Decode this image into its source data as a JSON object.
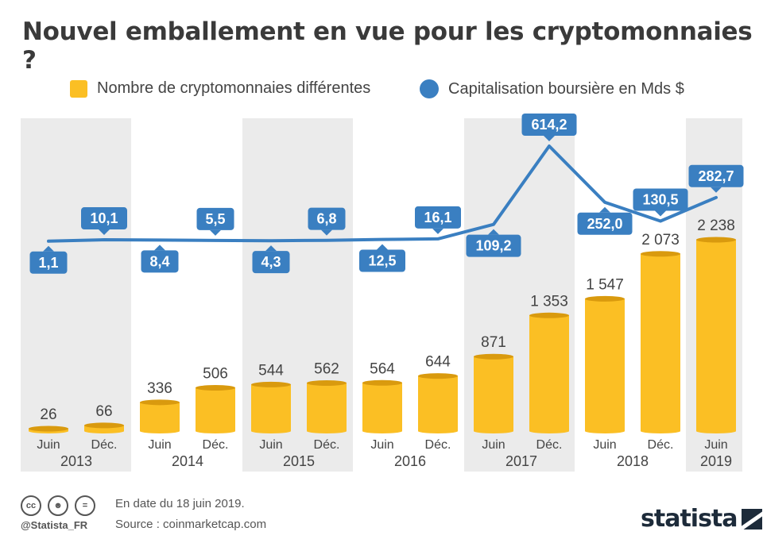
{
  "title": "Nouvel emballement en vue pour les cryptomonnaies ?",
  "legend": {
    "bar_label": "Nombre de cryptomonnaies différentes",
    "line_label": "Capitalisation boursière en Mds $"
  },
  "footer": {
    "note": "En date du 18 juin 2019.",
    "source": "Source : coinmarketcap.com",
    "handle": "@Statista_FR",
    "logo": "statista"
  },
  "colors": {
    "bar": "#fbbf24",
    "bar_top": "#d99a0e",
    "line": "#3a7fc1",
    "band": "#ebebeb"
  },
  "chart_data": {
    "type": "bar",
    "title": "Nouvel emballement en vue pour les cryptomonnaies ?",
    "categories": [
      "Juin",
      "Déc.",
      "Juin",
      "Déc.",
      "Juin",
      "Déc.",
      "Juin",
      "Déc.",
      "Juin",
      "Déc.",
      "Juin",
      "Déc.",
      "Juin"
    ],
    "years": [
      "2013",
      "2014",
      "2015",
      "2016",
      "2017",
      "2018",
      "2019"
    ],
    "series": [
      {
        "name": "Nombre de cryptomonnaies différentes",
        "type": "bar",
        "values": [
          26,
          66,
          336,
          506,
          544,
          562,
          564,
          644,
          871,
          1353,
          1547,
          2073,
          2238
        ],
        "labels": [
          "26",
          "66",
          "336",
          "506",
          "544",
          "562",
          "564",
          "644",
          "871",
          "1 353",
          "1 547",
          "2 073",
          "2 238"
        ]
      },
      {
        "name": "Capitalisation boursière en Mds $",
        "type": "line",
        "values": [
          1.1,
          10.1,
          8.4,
          5.5,
          4.3,
          6.8,
          12.5,
          16.1,
          109.2,
          614.2,
          252.0,
          130.5,
          282.7
        ],
        "labels": [
          "1,1",
          "10,1",
          "8,4",
          "5,5",
          "4,3",
          "6,8",
          "12,5",
          "16,1",
          "109,2",
          "614,2",
          "252,0",
          "130,5",
          "282,7"
        ],
        "label_position": [
          "below",
          "above",
          "below",
          "above",
          "below",
          "above",
          "below",
          "above",
          "below",
          "above",
          "below",
          "above",
          "above"
        ]
      }
    ],
    "grid": false,
    "legend_position": "top"
  }
}
